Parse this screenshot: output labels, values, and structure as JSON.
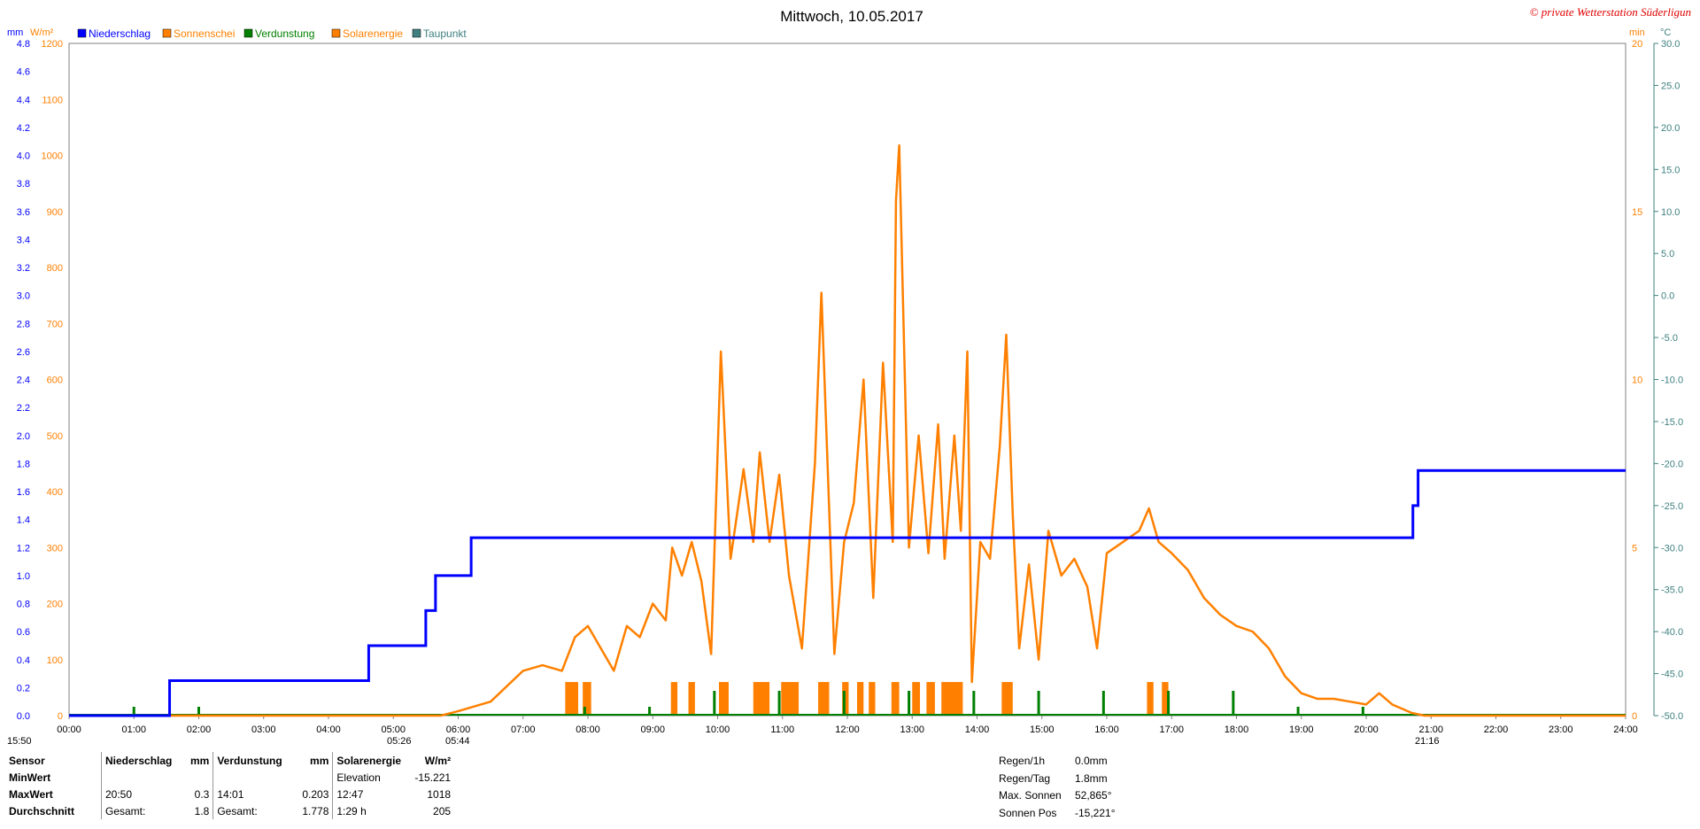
{
  "title": "Mittwoch, 10.05.2017",
  "copyright": "© private Wetterstation Süderligun",
  "axis_units": {
    "left_mm": "mm",
    "left_wm2": "W/m²",
    "right_min": "min",
    "right_c": "°C"
  },
  "legend": [
    {
      "name": "Niederschlag",
      "color": "#0000ff"
    },
    {
      "name": "Sonnenschei",
      "color": "#ff8000"
    },
    {
      "name": "Verdunstung",
      "color": "#008000"
    },
    {
      "name": "Solarenergie",
      "color": "#ff8000"
    },
    {
      "name": "Taupunkt",
      "color": "#408080"
    }
  ],
  "markers": {
    "bottom_left": "15:50",
    "sunrise": "05:26",
    "sunrise2": "05:44",
    "sunset": "21:16"
  },
  "chart_data": {
    "type": "line",
    "x_ticks": [
      "00:00",
      "01:00",
      "02:00",
      "03:00",
      "04:00",
      "05:00",
      "06:00",
      "07:00",
      "08:00",
      "09:00",
      "10:00",
      "11:00",
      "12:00",
      "13:00",
      "14:00",
      "15:00",
      "16:00",
      "17:00",
      "18:00",
      "19:00",
      "20:00",
      "21:00",
      "22:00",
      "23:00",
      "24:00"
    ],
    "y_mm_ticks": [
      "0.0",
      "0.2",
      "0.4",
      "0.6",
      "0.8",
      "1.0",
      "1.2",
      "1.4",
      "1.6",
      "1.8",
      "2.0",
      "2.2",
      "2.4",
      "2.6",
      "2.8",
      "3.0",
      "3.2",
      "3.4",
      "3.6",
      "3.8",
      "4.0",
      "4.2",
      "4.4",
      "4.6",
      "4.8"
    ],
    "y_wm2_ticks": [
      "0",
      "100",
      "200",
      "300",
      "400",
      "500",
      "600",
      "700",
      "800",
      "900",
      "1000",
      "1100",
      "1200"
    ],
    "y_min_ticks": [
      "0",
      "5",
      "10",
      "15",
      "20"
    ],
    "y_c_ticks": [
      "-50.0",
      "-45.0",
      "-40.0",
      "-35.0",
      "-30.0",
      "-25.0",
      "-20.0",
      "-15.0",
      "-10.0",
      "-5.0",
      "0.0",
      "5.0",
      "10.0",
      "15.0",
      "20.0",
      "25.0",
      "30.0"
    ],
    "ylim_mm": [
      0,
      4.8
    ],
    "ylim_wm2": [
      0,
      1200
    ],
    "ylim_min": [
      0,
      20
    ],
    "ylim_c": [
      -50,
      30
    ],
    "series": [
      {
        "name": "Niederschlag",
        "axis": "mm",
        "points": [
          [
            0,
            0
          ],
          [
            1.55,
            0
          ],
          [
            1.55,
            0.25
          ],
          [
            4.62,
            0.25
          ],
          [
            4.62,
            0.5
          ],
          [
            5.5,
            0.5
          ],
          [
            5.5,
            0.75
          ],
          [
            5.65,
            0.75
          ],
          [
            5.65,
            1.0
          ],
          [
            6.2,
            1.0
          ],
          [
            6.2,
            1.27
          ],
          [
            20.72,
            1.27
          ],
          [
            20.72,
            1.5
          ],
          [
            20.8,
            1.5
          ],
          [
            20.8,
            1.75
          ],
          [
            24,
            1.75
          ]
        ]
      },
      {
        "name": "Solarenergie",
        "axis": "wm2",
        "points": [
          [
            0,
            0
          ],
          [
            5.73,
            0
          ],
          [
            6,
            8
          ],
          [
            6.5,
            25
          ],
          [
            7,
            80
          ],
          [
            7.3,
            90
          ],
          [
            7.6,
            80
          ],
          [
            7.8,
            140
          ],
          [
            8.0,
            160
          ],
          [
            8.2,
            120
          ],
          [
            8.4,
            80
          ],
          [
            8.6,
            160
          ],
          [
            8.8,
            140
          ],
          [
            9.0,
            200
          ],
          [
            9.2,
            170
          ],
          [
            9.3,
            300
          ],
          [
            9.45,
            250
          ],
          [
            9.6,
            310
          ],
          [
            9.75,
            240
          ],
          [
            9.9,
            110
          ],
          [
            10.05,
            650
          ],
          [
            10.2,
            280
          ],
          [
            10.4,
            440
          ],
          [
            10.55,
            310
          ],
          [
            10.65,
            470
          ],
          [
            10.8,
            310
          ],
          [
            10.95,
            430
          ],
          [
            11.1,
            250
          ],
          [
            11.3,
            120
          ],
          [
            11.5,
            450
          ],
          [
            11.6,
            755
          ],
          [
            11.8,
            110
          ],
          [
            11.95,
            310
          ],
          [
            12.1,
            380
          ],
          [
            12.25,
            600
          ],
          [
            12.4,
            210
          ],
          [
            12.55,
            630
          ],
          [
            12.7,
            310
          ],
          [
            12.75,
            920
          ],
          [
            12.8,
            1018
          ],
          [
            12.95,
            300
          ],
          [
            13.1,
            500
          ],
          [
            13.25,
            290
          ],
          [
            13.4,
            520
          ],
          [
            13.5,
            280
          ],
          [
            13.65,
            500
          ],
          [
            13.75,
            330
          ],
          [
            13.85,
            650
          ],
          [
            13.92,
            60
          ],
          [
            14.05,
            310
          ],
          [
            14.2,
            280
          ],
          [
            14.35,
            480
          ],
          [
            14.45,
            680
          ],
          [
            14.55,
            360
          ],
          [
            14.65,
            120
          ],
          [
            14.8,
            270
          ],
          [
            14.95,
            100
          ],
          [
            15.1,
            330
          ],
          [
            15.3,
            250
          ],
          [
            15.5,
            280
          ],
          [
            15.7,
            230
          ],
          [
            15.85,
            120
          ],
          [
            16.0,
            290
          ],
          [
            16.25,
            310
          ],
          [
            16.5,
            330
          ],
          [
            16.65,
            370
          ],
          [
            16.8,
            310
          ],
          [
            17.0,
            290
          ],
          [
            17.25,
            260
          ],
          [
            17.5,
            210
          ],
          [
            17.75,
            180
          ],
          [
            18.0,
            160
          ],
          [
            18.25,
            150
          ],
          [
            18.5,
            120
          ],
          [
            18.75,
            70
          ],
          [
            19.0,
            40
          ],
          [
            19.25,
            30
          ],
          [
            19.5,
            30
          ],
          [
            19.75,
            25
          ],
          [
            20.0,
            20
          ],
          [
            20.2,
            40
          ],
          [
            20.4,
            20
          ],
          [
            20.7,
            5
          ],
          [
            20.9,
            0
          ],
          [
            24,
            0
          ]
        ]
      },
      {
        "name": "Sonnenschei",
        "axis": "min",
        "bars": [
          [
            7.65,
            7.85
          ],
          [
            7.92,
            8.05
          ],
          [
            9.28,
            9.38
          ],
          [
            9.55,
            9.65
          ],
          [
            10.02,
            10.17
          ],
          [
            10.55,
            10.8
          ],
          [
            10.98,
            11.25
          ],
          [
            11.55,
            11.72
          ],
          [
            11.92,
            12.02
          ],
          [
            12.15,
            12.25
          ],
          [
            12.33,
            12.43
          ],
          [
            12.68,
            12.8
          ],
          [
            13.0,
            13.12
          ],
          [
            13.22,
            13.35
          ],
          [
            13.45,
            13.78
          ],
          [
            14.38,
            14.55
          ],
          [
            16.62,
            16.72
          ],
          [
            16.85,
            16.95
          ]
        ],
        "value": 1
      }
    ]
  },
  "table": {
    "headers": [
      "Sensor",
      "Niederschlag",
      "mm",
      "Verdunstung",
      "mm",
      "Solarenergie",
      "W/m²"
    ],
    "rows": [
      [
        "MinWert",
        "",
        "",
        "",
        "",
        "Elevation",
        "-15.221"
      ],
      [
        "MaxWert",
        "20:50",
        "0.3",
        "14:01",
        "0.203",
        "12:47",
        "1018"
      ],
      [
        "Durchschnitt",
        "Gesamt:",
        "1.8",
        "Gesamt:",
        "1.778",
        "1:29 h",
        "205"
      ]
    ]
  },
  "info": [
    {
      "k": "Regen/1h",
      "v": "0.0mm"
    },
    {
      "k": "Regen/Tag",
      "v": "1.8mm"
    },
    {
      "k": "Max. Sonnen",
      "v": "52,865°"
    },
    {
      "k": "Sonnen Pos",
      "v": "-15,221°"
    }
  ]
}
